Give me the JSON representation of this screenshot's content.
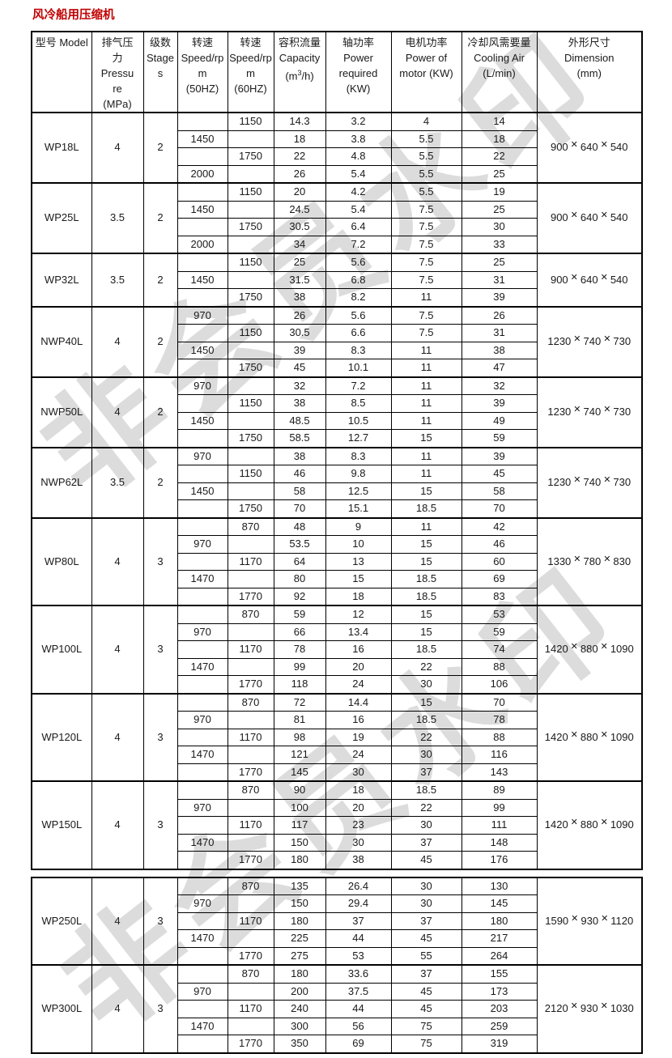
{
  "page": {
    "title": "风冷船用压缩机",
    "watermark": "非会员水印"
  },
  "colors": {
    "title": "#c00000",
    "border": "#000000",
    "watermark": "#dcdcdc"
  },
  "table": {
    "columns": [
      {
        "field": "model",
        "lines": [
          "型号 Model"
        ]
      },
      {
        "field": "pressure",
        "lines": [
          "排气压",
          "力",
          "Pressu",
          "re",
          "(MPa)"
        ]
      },
      {
        "field": "stages",
        "lines": [
          "级数",
          "Stage",
          "s"
        ]
      },
      {
        "field": "speed50",
        "lines": [
          "转速",
          "Speed/rp",
          "m",
          "(50HZ)"
        ]
      },
      {
        "field": "speed60",
        "lines": [
          "转速",
          "Speed/rp",
          "m",
          "(60HZ)"
        ]
      },
      {
        "field": "capacity",
        "lines": [
          "容积流量",
          "Capacity",
          "(m³/h)"
        ]
      },
      {
        "field": "power",
        "lines": [
          "轴功率",
          "Power",
          "required",
          "(KW)"
        ]
      },
      {
        "field": "motor",
        "lines": [
          "电机功率",
          "Power of",
          "motor (KW)"
        ]
      },
      {
        "field": "cooling",
        "lines": [
          "冷却风需要量",
          "Cooling Air",
          "(L/min)"
        ]
      },
      {
        "field": "dimension",
        "lines": [
          "外形尺寸",
          "Dimension",
          "(mm)"
        ]
      }
    ],
    "groups": [
      {
        "table": 1,
        "model": "WP18L",
        "pressure": "4",
        "stages": "2",
        "dimension": "900✕640✕540",
        "rows": [
          [
            "",
            "1150",
            "14.3",
            "3.2",
            "4",
            "14"
          ],
          [
            "1450",
            "",
            "18",
            "3.8",
            "5.5",
            "18"
          ],
          [
            "",
            "1750",
            "22",
            "4.8",
            "5.5",
            "22"
          ],
          [
            "2000",
            "",
            "26",
            "5.4",
            "5.5",
            "25"
          ]
        ]
      },
      {
        "table": 1,
        "model": "WP25L",
        "pressure": "3.5",
        "stages": "2",
        "dimension": "900✕640✕540",
        "rows": [
          [
            "",
            "1150",
            "20",
            "4.2",
            "5.5",
            "19"
          ],
          [
            "1450",
            "",
            "24.5",
            "5.4",
            "7.5",
            "25"
          ],
          [
            "",
            "1750",
            "30.5",
            "6.4",
            "7.5",
            "30"
          ],
          [
            "2000",
            "",
            "34",
            "7.2",
            "7.5",
            "33"
          ]
        ]
      },
      {
        "table": 1,
        "model": "WP32L",
        "pressure": "3.5",
        "stages": "2",
        "dimension": "900✕640✕540",
        "rows": [
          [
            "",
            "1150",
            "25",
            "5.6",
            "7.5",
            "25"
          ],
          [
            "1450",
            "",
            "31.5",
            "6.8",
            "7.5",
            "31"
          ],
          [
            "",
            "1750",
            "38",
            "8.2",
            "11",
            "39"
          ]
        ]
      },
      {
        "table": 1,
        "model": "NWP40L",
        "pressure": "4",
        "stages": "2",
        "dimension": "1230✕740✕730",
        "rows": [
          [
            "970",
            "",
            "26",
            "5.6",
            "7.5",
            "26"
          ],
          [
            "",
            "1150",
            "30.5",
            "6.6",
            "7.5",
            "31"
          ],
          [
            "1450",
            "",
            "39",
            "8.3",
            "11",
            "38"
          ],
          [
            "",
            "1750",
            "45",
            "10.1",
            "11",
            "47"
          ]
        ]
      },
      {
        "table": 1,
        "model": "NWP50L",
        "pressure": "4",
        "stages": "2",
        "dimension": "1230✕740✕730",
        "rows": [
          [
            "970",
            "",
            "32",
            "7.2",
            "11",
            "32"
          ],
          [
            "",
            "1150",
            "38",
            "8.5",
            "11",
            "39"
          ],
          [
            "1450",
            "",
            "48.5",
            "10.5",
            "11",
            "49"
          ],
          [
            "",
            "1750",
            "58.5",
            "12.7",
            "15",
            "59"
          ]
        ]
      },
      {
        "table": 1,
        "model": "NWP62L",
        "pressure": "3.5",
        "stages": "2",
        "dimension": "1230✕740✕730",
        "rows": [
          [
            "970",
            "",
            "38",
            "8.3",
            "11",
            "39"
          ],
          [
            "",
            "1150",
            "46",
            "9.8",
            "11",
            "45"
          ],
          [
            "1450",
            "",
            "58",
            "12.5",
            "15",
            "58"
          ],
          [
            "",
            "1750",
            "70",
            "15.1",
            "18.5",
            "70"
          ]
        ]
      },
      {
        "table": 1,
        "model": "WP80L",
        "pressure": "4",
        "stages": "3",
        "dimension": "1330✕780✕830",
        "rows": [
          [
            "",
            "870",
            "48",
            "9",
            "11",
            "42"
          ],
          [
            "970",
            "",
            "53.5",
            "10",
            "15",
            "46"
          ],
          [
            "",
            "1170",
            "64",
            "13",
            "15",
            "60"
          ],
          [
            "1470",
            "",
            "80",
            "15",
            "18.5",
            "69"
          ],
          [
            "",
            "1770",
            "92",
            "18",
            "18.5",
            "83"
          ]
        ]
      },
      {
        "table": 1,
        "model": "WP100L",
        "pressure": "4",
        "stages": "3",
        "dimension": "1420✕880✕1090",
        "rows": [
          [
            "",
            "870",
            "59",
            "12",
            "15",
            "53"
          ],
          [
            "970",
            "",
            "66",
            "13.4",
            "15",
            "59"
          ],
          [
            "",
            "1170",
            "78",
            "16",
            "18.5",
            "74"
          ],
          [
            "1470",
            "",
            "99",
            "20",
            "22",
            "88"
          ],
          [
            "",
            "1770",
            "118",
            "24",
            "30",
            "106"
          ]
        ]
      },
      {
        "table": 1,
        "model": "WP120L",
        "pressure": "4",
        "stages": "3",
        "dimension": "1420✕880✕1090",
        "rows": [
          [
            "",
            "870",
            "72",
            "14.4",
            "15",
            "70"
          ],
          [
            "970",
            "",
            "81",
            "16",
            "18.5",
            "78"
          ],
          [
            "",
            "1170",
            "98",
            "19",
            "22",
            "88"
          ],
          [
            "1470",
            "",
            "121",
            "24",
            "30",
            "116"
          ],
          [
            "",
            "1770",
            "145",
            "30",
            "37",
            "143"
          ]
        ]
      },
      {
        "table": 1,
        "model": "WP150L",
        "pressure": "4",
        "stages": "3",
        "dimension": "1420✕880✕1090",
        "rows": [
          [
            "",
            "870",
            "90",
            "18",
            "18.5",
            "89"
          ],
          [
            "970",
            "",
            "100",
            "20",
            "22",
            "99"
          ],
          [
            "",
            "1170",
            "117",
            "23",
            "30",
            "111"
          ],
          [
            "1470",
            "",
            "150",
            "30",
            "37",
            "148"
          ],
          [
            "",
            "1770",
            "180",
            "38",
            "45",
            "176"
          ]
        ]
      },
      {
        "table": 2,
        "model": "WP250L",
        "pressure": "4",
        "stages": "3",
        "dimension": "1590✕930✕1120",
        "rows": [
          [
            "",
            "870",
            "135",
            "26.4",
            "30",
            "130"
          ],
          [
            "970",
            "",
            "150",
            "29.4",
            "30",
            "145"
          ],
          [
            "",
            "1170",
            "180",
            "37",
            "37",
            "180"
          ],
          [
            "1470",
            "",
            "225",
            "44",
            "45",
            "217"
          ],
          [
            "",
            "1770",
            "275",
            "53",
            "55",
            "264"
          ]
        ]
      },
      {
        "table": 2,
        "model": "WP300L",
        "pressure": "4",
        "stages": "3",
        "dimension": "2120✕930✕1030",
        "rows": [
          [
            "",
            "870",
            "180",
            "33.6",
            "37",
            "155"
          ],
          [
            "970",
            "",
            "200",
            "37.5",
            "45",
            "173"
          ],
          [
            "",
            "1170",
            "240",
            "44",
            "45",
            "203"
          ],
          [
            "1470",
            "",
            "300",
            "56",
            "75",
            "259"
          ],
          [
            "",
            "1770",
            "350",
            "69",
            "75",
            "319"
          ]
        ]
      }
    ]
  }
}
